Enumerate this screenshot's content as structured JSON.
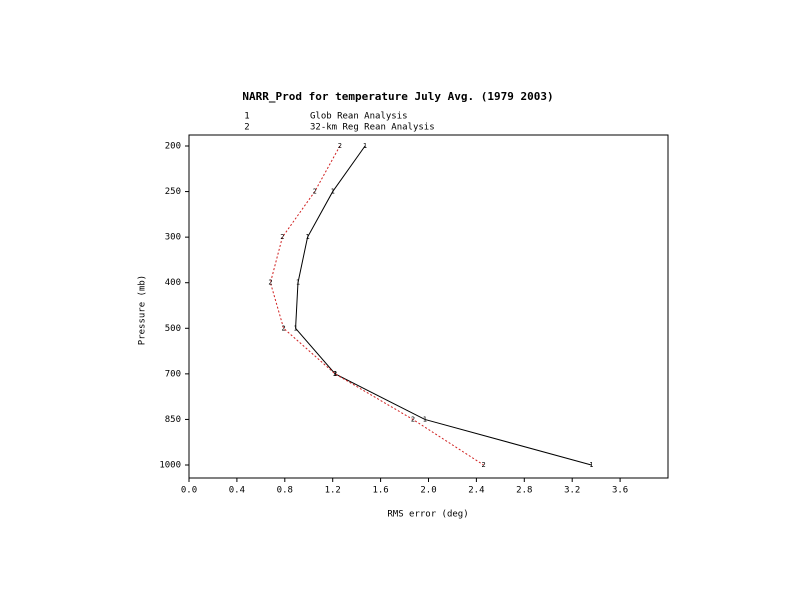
{
  "chart_data": {
    "type": "line",
    "orientation": "horizontal",
    "title": "NARR_Prod for temperature July Avg. (1979 2003)",
    "xlabel": "RMS error (deg)",
    "ylabel": "Pressure (mb)",
    "categories": [
      "200",
      "250",
      "300",
      "400",
      "500",
      "700",
      "850",
      "1000"
    ],
    "series": [
      {
        "name": "Glob Rean Analysis",
        "symbol": "1",
        "color": "#000000",
        "dash": "none",
        "values": [
          1.47,
          1.2,
          0.99,
          0.91,
          0.89,
          1.22,
          1.97,
          3.36
        ]
      },
      {
        "name": "32-km Reg Rean Analysis",
        "symbol": "2",
        "color": "#d02020",
        "dash": "2,2",
        "values": [
          1.26,
          1.05,
          0.78,
          0.68,
          0.79,
          1.22,
          1.87,
          2.46
        ]
      }
    ],
    "xlim": [
      0,
      4.0
    ],
    "xticks": [
      {
        "value": 0,
        "label": "0.0"
      },
      0.4,
      0.8,
      1.2,
      1.6,
      {
        "value": 2,
        "label": "2.0"
      },
      2.4,
      2.8,
      3.2,
      3.6
    ]
  }
}
